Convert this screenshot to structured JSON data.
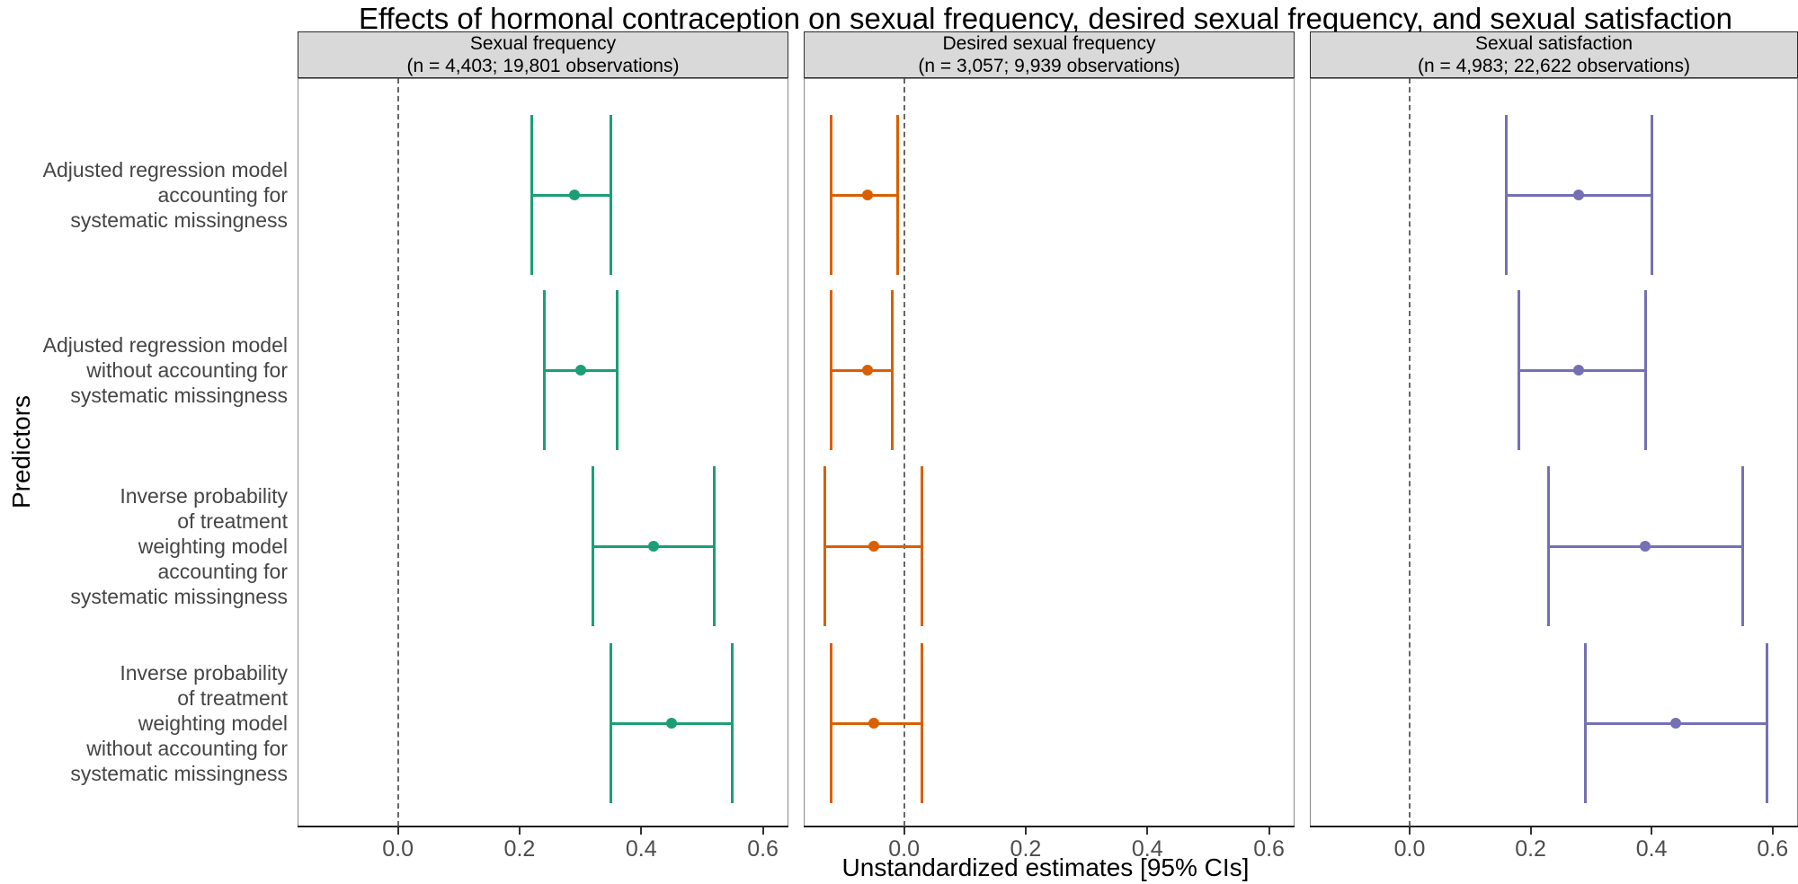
{
  "title": "Effects of hormonal contraception on sexual frequency, desired sexual frequency, and sexual satisfaction",
  "x_axis_title": "Unstandardized estimates [95% CIs]",
  "y_axis_title": "Predictors",
  "chart_data": {
    "type": "forest",
    "x_ticks": [
      0.0,
      0.2,
      0.4,
      0.6
    ],
    "x_tick_labels": [
      "0.0",
      "0.2",
      "0.4",
      "0.6"
    ],
    "x_range": [
      -0.165,
      0.642
    ],
    "reference_line_x": 0,
    "grid": "off",
    "categories_lines": [
      [
        "Adjusted regression model",
        "accounting for",
        "systematic missingness"
      ],
      [
        "Adjusted regression model",
        "without accounting for",
        "systematic missingness"
      ],
      [
        "Inverse probability",
        "of treatment",
        "weighting model",
        "accounting for",
        "systematic missingness"
      ],
      [
        "Inverse probability",
        "of treatment",
        "weighting model",
        "without accounting for",
        "systematic missingness"
      ]
    ],
    "panels": [
      {
        "title_line1": "Sexual frequency",
        "title_line2": "(n = 4,403; 19,801 observations)",
        "color": "#1b9e77",
        "estimates": [
          {
            "estimate": 0.29,
            "ci_low": 0.22,
            "ci_high": 0.35
          },
          {
            "estimate": 0.3,
            "ci_low": 0.24,
            "ci_high": 0.36
          },
          {
            "estimate": 0.42,
            "ci_low": 0.32,
            "ci_high": 0.52
          },
          {
            "estimate": 0.45,
            "ci_low": 0.35,
            "ci_high": 0.55
          }
        ]
      },
      {
        "title_line1": "Desired sexual frequency",
        "title_line2": "(n = 3,057; 9,939 observations)",
        "color": "#d95f02",
        "estimates": [
          {
            "estimate": -0.06,
            "ci_low": -0.12,
            "ci_high": -0.01
          },
          {
            "estimate": -0.06,
            "ci_low": -0.12,
            "ci_high": -0.02
          },
          {
            "estimate": -0.05,
            "ci_low": -0.13,
            "ci_high": 0.03
          },
          {
            "estimate": -0.05,
            "ci_low": -0.12,
            "ci_high": 0.03
          }
        ]
      },
      {
        "title_line1": "Sexual satisfaction",
        "title_line2": "(n = 4,983; 22,622 observations)",
        "color": "#7570b3",
        "estimates": [
          {
            "estimate": 0.28,
            "ci_low": 0.16,
            "ci_high": 0.4
          },
          {
            "estimate": 0.28,
            "ci_low": 0.18,
            "ci_high": 0.39
          },
          {
            "estimate": 0.39,
            "ci_low": 0.23,
            "ci_high": 0.55
          },
          {
            "estimate": 0.44,
            "ci_low": 0.29,
            "ci_high": 0.59
          }
        ]
      }
    ]
  }
}
